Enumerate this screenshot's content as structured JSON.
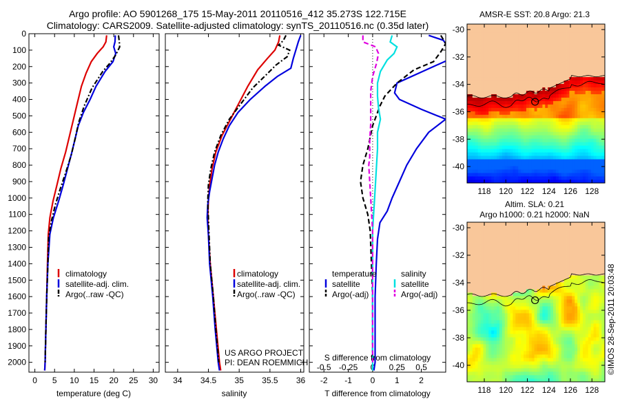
{
  "header": {
    "line1": "Argo profile: AO 5901268_175 15-May-2011 20110516_412 35.273S 122.715E",
    "line2": "Climatology: CARS2009. Satellite-adjusted climatology: synTS_20110516.nc (0.35d later)"
  },
  "credits": {
    "project": "US ARGO PROJECT",
    "pi": "PI: DEAN ROEMMICH"
  },
  "vertical_note": "©IMOS 28-Sep-2011 20:03:48",
  "colors": {
    "climatology": "#dd0000",
    "satellite": "#0000dd",
    "argo": "#000000",
    "sal_sat": "#00e0e0",
    "sal_argo": "#e000e0",
    "land": "#f9c79a"
  },
  "depth_ticks": [
    0,
    100,
    200,
    300,
    400,
    500,
    600,
    700,
    800,
    900,
    1000,
    1100,
    1200,
    1300,
    1400,
    1500,
    1600,
    1700,
    1800,
    1900,
    2000
  ],
  "chart_data": [
    {
      "type": "line",
      "xlabel": "temperature (deg C)",
      "xticks": [
        0,
        5,
        10,
        15,
        20,
        25,
        30
      ],
      "xlim": [
        -1.5,
        31.5
      ],
      "ylim": [
        2060,
        0
      ],
      "legend": [
        "climatology",
        "satellite-adj. clim.",
        "Argo(..raw -QC)"
      ],
      "series": [
        {
          "name": "climatology",
          "style": "solid",
          "color": "#dd0000",
          "points": [
            [
              18.2,
              10
            ],
            [
              18.0,
              50
            ],
            [
              17.3,
              80
            ],
            [
              15.8,
              120
            ],
            [
              14.3,
              170
            ],
            [
              13.0,
              240
            ],
            [
              11.8,
              320
            ],
            [
              10.8,
              420
            ],
            [
              9.8,
              520
            ],
            [
              8.8,
              620
            ],
            [
              7.8,
              720
            ],
            [
              6.6,
              820
            ],
            [
              5.6,
              920
            ],
            [
              4.6,
              1020
            ],
            [
              3.8,
              1120
            ],
            [
              3.4,
              1220
            ],
            [
              3.2,
              1400
            ],
            [
              3.0,
              1600
            ],
            [
              2.8,
              1800
            ],
            [
              2.6,
              2000
            ],
            [
              2.5,
              2050
            ]
          ]
        },
        {
          "name": "satellite-adj. clim.",
          "style": "solid",
          "color": "#0000dd",
          "points": [
            [
              20.4,
              10
            ],
            [
              20.3,
              50
            ],
            [
              20.0,
              80
            ],
            [
              20.5,
              120
            ],
            [
              19.8,
              170
            ],
            [
              17.8,
              230
            ],
            [
              15.5,
              320
            ],
            [
              14.0,
              400
            ],
            [
              12.3,
              480
            ],
            [
              11.0,
              560
            ],
            [
              10.2,
              640
            ],
            [
              9.4,
              720
            ],
            [
              8.3,
              820
            ],
            [
              7.2,
              920
            ],
            [
              6.0,
              1020
            ],
            [
              4.7,
              1120
            ],
            [
              3.8,
              1220
            ],
            [
              3.3,
              1400
            ],
            [
              3.0,
              1600
            ],
            [
              2.8,
              1800
            ],
            [
              2.6,
              2000
            ],
            [
              2.5,
              2050
            ]
          ]
        },
        {
          "name": "Argo(..raw -QC)",
          "style": "dashdot",
          "color": "#000000",
          "points": [
            [
              21.2,
              10
            ],
            [
              21.4,
              50
            ],
            [
              21.5,
              80
            ],
            [
              20.5,
              130
            ],
            [
              19.0,
              180
            ],
            [
              17.2,
              230
            ],
            [
              14.5,
              330
            ],
            [
              12.5,
              440
            ],
            [
              11.1,
              540
            ],
            [
              10.2,
              640
            ],
            [
              9.2,
              740
            ],
            [
              7.9,
              840
            ],
            [
              6.5,
              940
            ],
            [
              5.2,
              1040
            ],
            [
              4.2,
              1140
            ],
            [
              3.5,
              1240
            ],
            [
              3.3,
              1400
            ],
            [
              3.0,
              1600
            ],
            [
              2.8,
              1800
            ],
            [
              2.6,
              2000
            ]
          ]
        }
      ]
    },
    {
      "type": "line",
      "xlabel": "salinity",
      "xticks": [
        34,
        34.5,
        35,
        35.5,
        36
      ],
      "xlim": [
        33.8,
        36.05
      ],
      "ylim": [
        2060,
        0
      ],
      "legend": [
        "climatology",
        "satellite-adj. clim.",
        "Argo(..raw -QC)"
      ],
      "series": [
        {
          "name": "climatology",
          "style": "solid",
          "color": "#dd0000",
          "points": [
            [
              35.66,
              10
            ],
            [
              35.64,
              50
            ],
            [
              35.58,
              100
            ],
            [
              35.46,
              150
            ],
            [
              35.3,
              220
            ],
            [
              35.14,
              320
            ],
            [
              35.0,
              420
            ],
            [
              34.86,
              520
            ],
            [
              34.72,
              620
            ],
            [
              34.62,
              720
            ],
            [
              34.56,
              820
            ],
            [
              34.52,
              920
            ],
            [
              34.5,
              1020
            ],
            [
              34.49,
              1120
            ],
            [
              34.5,
              1220
            ],
            [
              34.53,
              1400
            ],
            [
              34.58,
              1600
            ],
            [
              34.63,
              1800
            ],
            [
              34.68,
              2000
            ],
            [
              34.7,
              2050
            ]
          ]
        },
        {
          "name": "satellite-adj. clim.",
          "style": "solid",
          "color": "#0000dd",
          "points": [
            [
              36.0,
              10
            ],
            [
              35.96,
              50
            ],
            [
              35.92,
              100
            ],
            [
              35.88,
              150
            ],
            [
              35.84,
              210
            ],
            [
              35.62,
              260
            ],
            [
              35.42,
              320
            ],
            [
              35.18,
              400
            ],
            [
              34.98,
              480
            ],
            [
              34.84,
              560
            ],
            [
              34.74,
              640
            ],
            [
              34.66,
              720
            ],
            [
              34.6,
              800
            ],
            [
              34.56,
              880
            ],
            [
              34.52,
              960
            ],
            [
              34.49,
              1040
            ],
            [
              34.48,
              1120
            ],
            [
              34.5,
              1220
            ],
            [
              34.52,
              1400
            ],
            [
              34.57,
              1600
            ],
            [
              34.61,
              1800
            ],
            [
              34.66,
              2000
            ],
            [
              34.68,
              2050
            ]
          ]
        },
        {
          "name": "Argo(..raw -QC)",
          "style": "dashdot",
          "color": "#000000",
          "points": [
            [
              35.76,
              10
            ],
            [
              35.72,
              40
            ],
            [
              35.64,
              70
            ],
            [
              35.82,
              100
            ],
            [
              35.78,
              140
            ],
            [
              35.6,
              190
            ],
            [
              35.44,
              250
            ],
            [
              35.22,
              330
            ],
            [
              35.04,
              420
            ],
            [
              34.84,
              520
            ],
            [
              34.7,
              620
            ],
            [
              34.6,
              720
            ],
            [
              34.54,
              820
            ],
            [
              34.5,
              920
            ],
            [
              34.49,
              1020
            ],
            [
              34.5,
              1120
            ],
            [
              34.51,
              1220
            ],
            [
              34.53,
              1400
            ],
            [
              34.58,
              1600
            ],
            [
              34.62,
              1800
            ],
            [
              34.67,
              2000
            ]
          ]
        }
      ]
    },
    {
      "type": "line",
      "xlabel": "T difference from climatology",
      "xlabel2": "S difference from climatology",
      "xticks": [
        -2,
        -1,
        0,
        1,
        2
      ],
      "sticks": [
        "-0.5",
        "-0.25",
        "0",
        "0.25",
        "0.5"
      ],
      "xlim": [
        -2.6,
        3.0
      ],
      "ylim": [
        2060,
        0
      ],
      "legend_temperature": {
        "title": "temperature",
        "items": [
          "satellite",
          "Argo(-adj)"
        ]
      },
      "legend_salinity": {
        "title": "salinity",
        "items": [
          "satellite",
          "Argo(-adj)"
        ]
      },
      "series": [
        {
          "name": "temperature satellite",
          "style": "solid",
          "color": "#0000dd",
          "points": [
            [
              2.3,
              10
            ],
            [
              2.9,
              40
            ],
            [
              3.1,
              80
            ],
            [
              3.1,
              160
            ],
            [
              2.2,
              220
            ],
            [
              1.0,
              300
            ],
            [
              0.9,
              360
            ],
            [
              1.1,
              400
            ],
            [
              2.0,
              460
            ],
            [
              3.0,
              520
            ],
            [
              2.3,
              600
            ],
            [
              1.8,
              700
            ],
            [
              1.4,
              800
            ],
            [
              1.1,
              900
            ],
            [
              0.8,
              1000
            ],
            [
              0.6,
              1080
            ],
            [
              0.3,
              1150
            ],
            [
              0.2,
              1250
            ],
            [
              0.15,
              1400
            ],
            [
              0.1,
              1600
            ],
            [
              0.1,
              1800
            ],
            [
              0.1,
              2000
            ],
            [
              0.05,
              2050
            ]
          ]
        },
        {
          "name": "temperature Argo(-adj)",
          "style": "dashed",
          "color": "#000000",
          "points": [
            [
              2.8,
              10
            ],
            [
              3.0,
              60
            ],
            [
              2.8,
              110
            ],
            [
              2.5,
              170
            ],
            [
              1.7,
              220
            ],
            [
              1.0,
              300
            ],
            [
              0.5,
              380
            ],
            [
              0.3,
              440
            ],
            [
              0.0,
              560
            ],
            [
              -0.2,
              700
            ],
            [
              -0.4,
              800
            ],
            [
              -0.5,
              900
            ],
            [
              -0.4,
              1000
            ],
            [
              -0.2,
              1100
            ],
            [
              -0.1,
              1200
            ],
            [
              -0.05,
              1400
            ],
            [
              0.0,
              1600
            ],
            [
              0.0,
              1800
            ],
            [
              0.0,
              2000
            ]
          ]
        },
        {
          "name": "salinity satellite",
          "style": "solid",
          "color": "#00e0e0",
          "points": [
            [
              0.2,
              10
            ],
            [
              0.18,
              50
            ],
            [
              0.25,
              80
            ],
            [
              0.22,
              120
            ],
            [
              0.15,
              160
            ],
            [
              0.08,
              230
            ],
            [
              0.05,
              300
            ],
            [
              0.05,
              380
            ],
            [
              0.06,
              450
            ],
            [
              0.08,
              520
            ],
            [
              0.05,
              600
            ],
            [
              0.05,
              700
            ],
            [
              0.04,
              800
            ],
            [
              0.03,
              900
            ],
            [
              0.02,
              1000
            ],
            [
              0.01,
              1100
            ],
            [
              0.0,
              1200
            ],
            [
              0.0,
              1400
            ],
            [
              0.0,
              1600
            ],
            [
              0.0,
              1800
            ],
            [
              0.0,
              2000
            ],
            [
              0.0,
              2050
            ]
          ]
        },
        {
          "name": "salinity Argo(-adj)",
          "style": "dashed",
          "color": "#e000e0",
          "points": [
            [
              -0.1,
              10
            ],
            [
              -0.1,
              50
            ],
            [
              0.03,
              80
            ],
            [
              0.06,
              120
            ],
            [
              0.04,
              180
            ],
            [
              0.0,
              260
            ],
            [
              -0.02,
              350
            ],
            [
              -0.02,
              450
            ],
            [
              -0.02,
              550
            ],
            [
              -0.03,
              650
            ],
            [
              -0.03,
              750
            ],
            [
              -0.04,
              800
            ],
            [
              -0.03,
              900
            ],
            [
              -0.02,
              1000
            ],
            [
              -0.01,
              1100
            ],
            [
              0.0,
              1200
            ],
            [
              0.0,
              1400
            ],
            [
              0.0,
              1600
            ],
            [
              0.0,
              1800
            ],
            [
              0.0,
              2000
            ]
          ]
        }
      ]
    },
    {
      "type": "heatmap",
      "title": "AMSR-E SST: 20.8 Argo: 21.3",
      "xticks": [
        118,
        120,
        122,
        124,
        126,
        128
      ],
      "yticks": [
        -30,
        -32,
        -34,
        -36,
        -38,
        -40
      ],
      "xlim": [
        116.4,
        129.2
      ],
      "ylim": [
        -41.2,
        -29.6
      ],
      "marker": {
        "lon": 122.715,
        "lat": -35.273
      }
    },
    {
      "type": "heatmap",
      "title": "Altim. SLA: 0.21",
      "subtitle": "Argo h1000: 0.21 h2000: NaN",
      "xticks": [
        118,
        120,
        122,
        124,
        126,
        128
      ],
      "yticks": [
        -30,
        -32,
        -34,
        -36,
        -38,
        -40
      ],
      "xlim": [
        116.4,
        129.2
      ],
      "ylim": [
        -41.2,
        -29.6
      ],
      "marker": {
        "lon": 122.715,
        "lat": -35.273
      }
    }
  ]
}
